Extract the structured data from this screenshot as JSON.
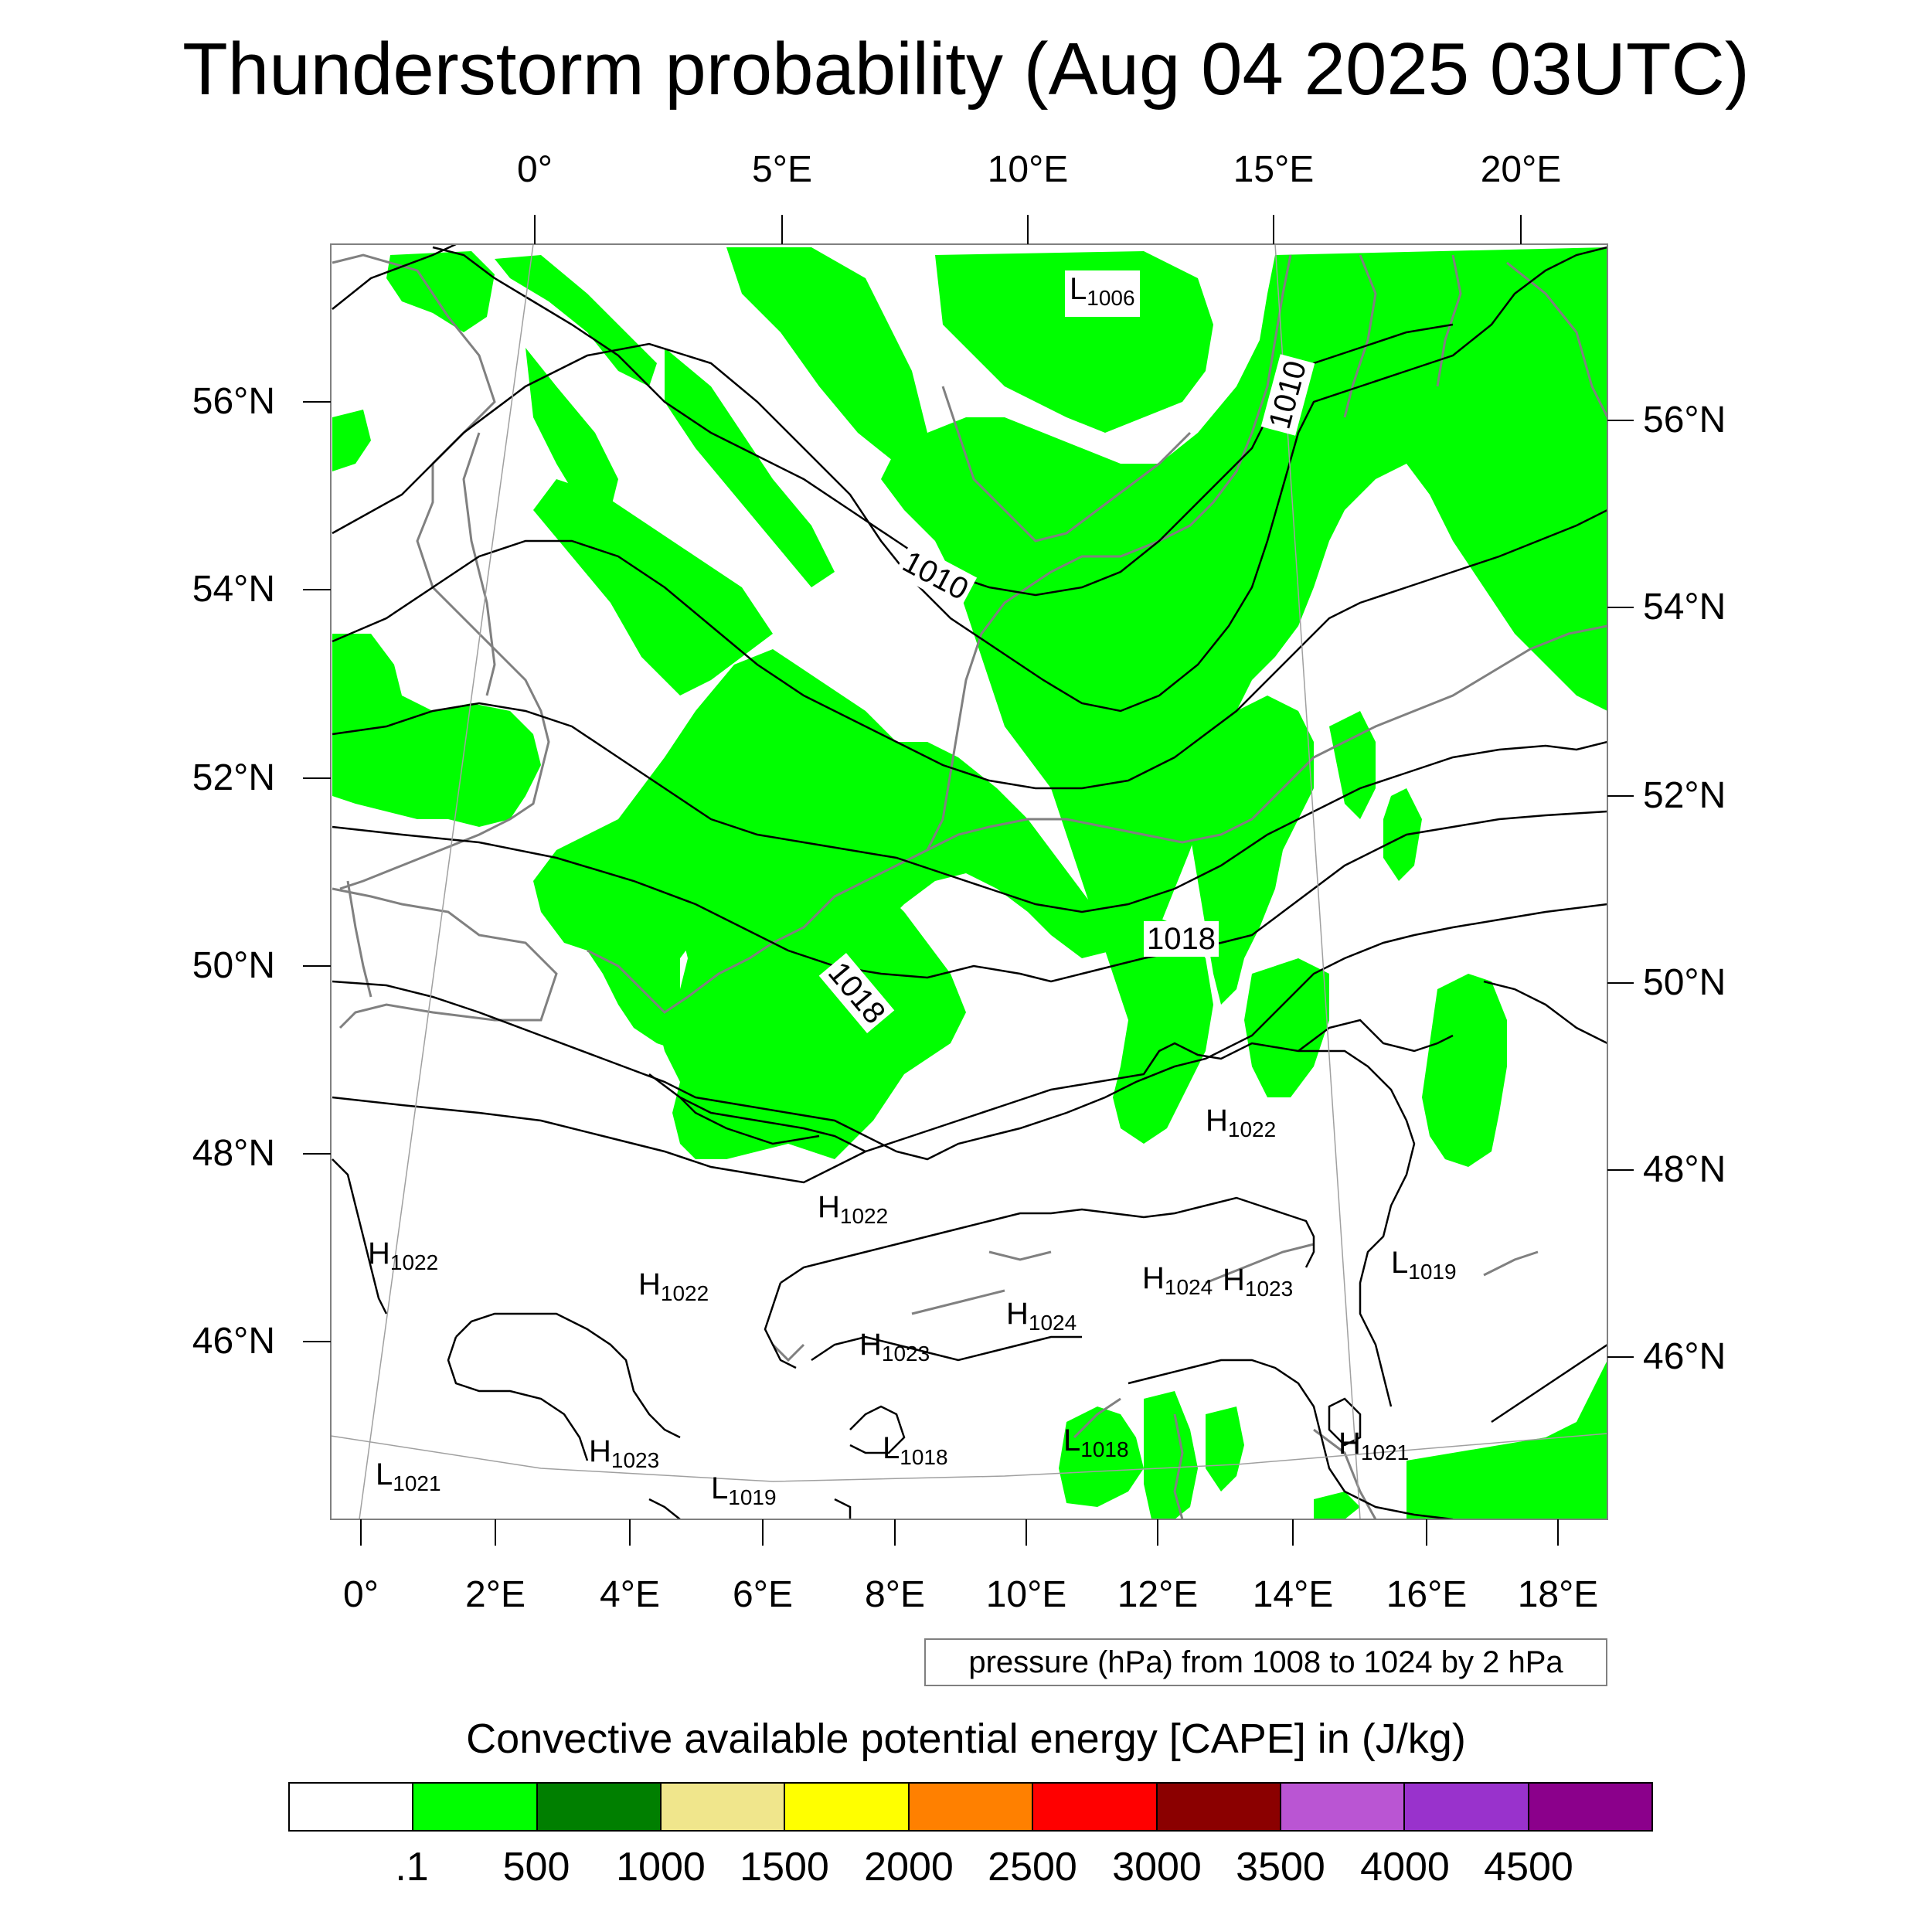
{
  "title": "Thunderstorm probability (Aug 04 2025 03UTC)",
  "top_lon_labels": [
    "0°",
    "5°E",
    "10°E",
    "15°E",
    "20°E"
  ],
  "bottom_lon_labels": [
    "0°",
    "2°E",
    "4°E",
    "6°E",
    "8°E",
    "10°E",
    "12°E",
    "14°E",
    "16°E",
    "18°E"
  ],
  "left_lat_labels": [
    "56°N",
    "54°N",
    "52°N",
    "50°N",
    "48°N",
    "46°N"
  ],
  "right_lat_labels": [
    "56°N",
    "54°N",
    "52°N",
    "50°N",
    "48°N",
    "46°N"
  ],
  "contour_info": "pressure (hPa) from 1008 to 1024 by 2 hPa",
  "contour_labels": [
    "1010",
    "1010",
    "1018",
    "1018"
  ],
  "pressure_systems": [
    {
      "type": "L",
      "value": "1006"
    },
    {
      "type": "H",
      "value": "1022"
    },
    {
      "type": "H",
      "value": "1022"
    },
    {
      "type": "H",
      "value": "1022"
    },
    {
      "type": "H",
      "value": "1022"
    },
    {
      "type": "L",
      "value": "1019"
    },
    {
      "type": "H",
      "value": "1024"
    },
    {
      "type": "H",
      "value": "1023"
    },
    {
      "type": "H",
      "value": "1024"
    },
    {
      "type": "H",
      "value": "1023"
    },
    {
      "type": "L",
      "value": "1018"
    },
    {
      "type": "L",
      "value": "1018"
    },
    {
      "type": "H",
      "value": "1021"
    },
    {
      "type": "H",
      "value": "1023"
    },
    {
      "type": "L",
      "value": "1021"
    },
    {
      "type": "L",
      "value": "1019"
    }
  ],
  "colorbar": {
    "title": "Convective available potential energy [CAPE] in (J/kg)",
    "colors": [
      "#ffffff",
      "#00ff00",
      "#007f00",
      "#f0e68c",
      "#ffff00",
      "#ff8000",
      "#ff0000",
      "#8b0000",
      "#ba55d3",
      "#9932cc",
      "#8b008b"
    ],
    "tick_labels": [
      ".1",
      "500",
      "1000",
      "1500",
      "2000",
      "2500",
      "3000",
      "3500",
      "4000",
      "4500"
    ]
  },
  "colors": {
    "cape_low": "#00ff00",
    "coastline": "#808080",
    "isobar": "#000000"
  }
}
